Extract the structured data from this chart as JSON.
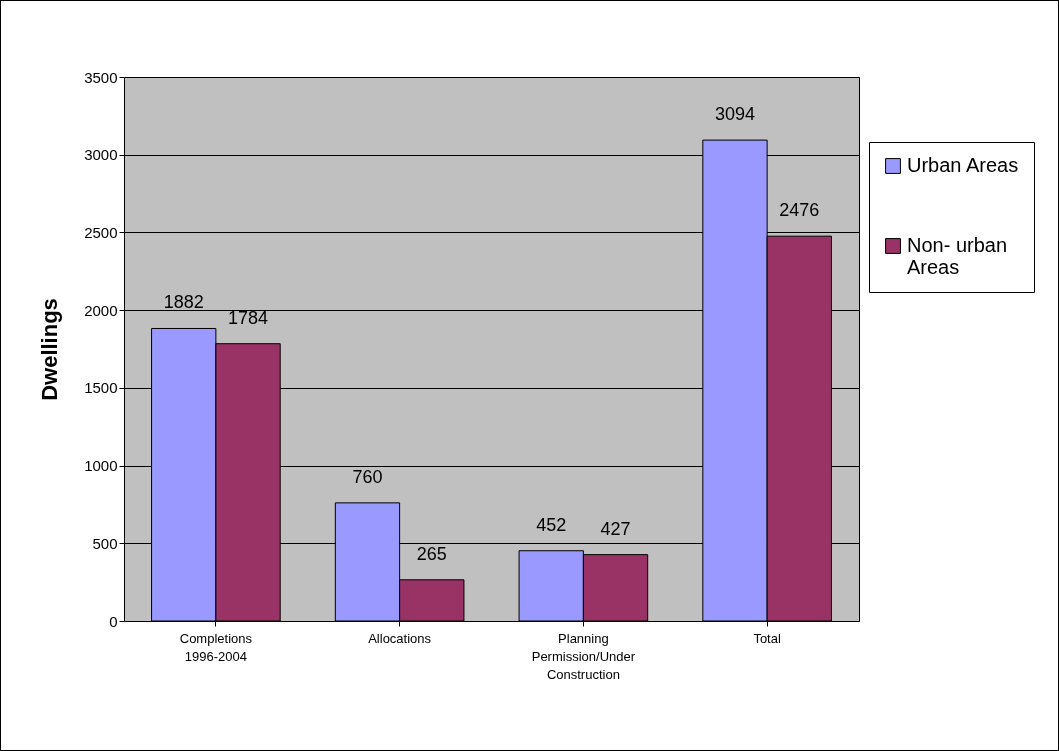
{
  "chart_data": {
    "type": "bar",
    "ylabel": "Dwellings",
    "categories": [
      "Completions 1996-2004",
      "Allocations",
      "Planning Permission/Under Construction",
      "Total"
    ],
    "series": [
      {
        "name": "Urban Areas",
        "color": "#9999ff",
        "values": [
          1882,
          760,
          452,
          3094
        ]
      },
      {
        "name": "Non- urban Areas",
        "color": "#993366",
        "values": [
          1784,
          265,
          427,
          2476
        ]
      }
    ],
    "ylim": [
      0,
      3500
    ],
    "yticks": [
      0,
      500,
      1000,
      1500,
      2000,
      2500,
      3000,
      3500
    ],
    "grid": "y",
    "legend": "right",
    "data_labels": true
  }
}
